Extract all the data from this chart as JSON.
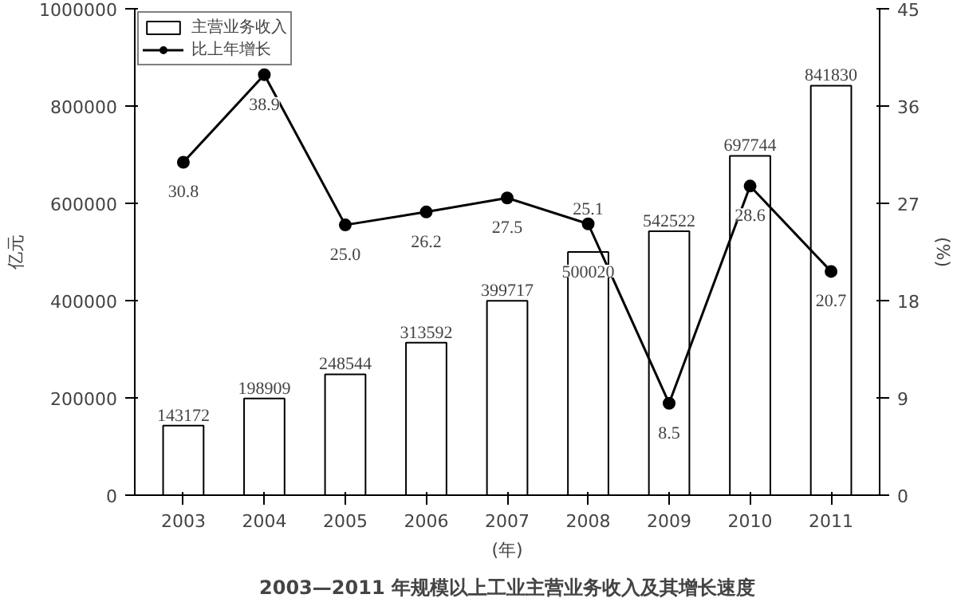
{
  "chart_data": {
    "type": "bar",
    "title": "2003—2011 年规模以上工业主营业务收入及其增长速度",
    "xlabel": "(年)",
    "ylabel": "亿元",
    "y2label": "(%)",
    "categories": [
      "2003",
      "2004",
      "2005",
      "2006",
      "2007",
      "2008",
      "2009",
      "2010",
      "2011"
    ],
    "series": [
      {
        "name": "主营业务收入",
        "color": "#ffffff",
        "values": [
          143172,
          198909,
          248544,
          313592,
          399717,
          500020,
          542522,
          697744,
          841830
        ]
      },
      {
        "name": "比上年增长",
        "type": "line",
        "axis": "y2",
        "color": "#000000",
        "values": [
          30.8,
          38.9,
          25.0,
          26.2,
          27.5,
          25.1,
          8.5,
          28.6,
          20.7
        ],
        "value_labels": [
          "30.8",
          "38.9",
          "25.0",
          "26.2",
          "27.5",
          "25.1",
          "8.5",
          "28.6",
          "20.7"
        ]
      }
    ],
    "ylim": [
      0,
      1000000
    ],
    "yticks": [
      0,
      200000,
      400000,
      600000,
      800000,
      1000000
    ],
    "y2lim": [
      0,
      45
    ],
    "y2ticks": [
      0,
      9,
      18,
      27,
      36,
      45
    ],
    "data_labels": true,
    "legend": "top left",
    "grid": false,
    "marker": "circle",
    "line_style": "solid"
  }
}
